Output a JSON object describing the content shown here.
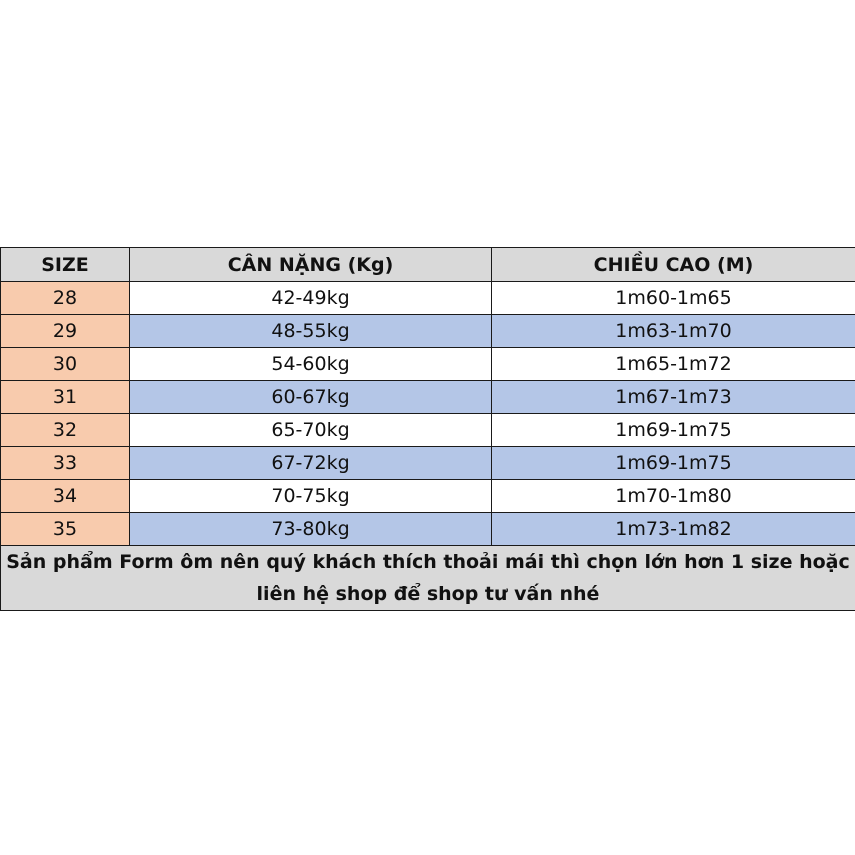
{
  "headers": [
    "SIZE",
    "CÂN NẶNG (Kg)",
    "CHIỀU CAO (M)"
  ],
  "rows": [
    [
      "28",
      "42-49kg",
      "1m60-1m65"
    ],
    [
      "29",
      "48-55kg",
      "1m63-1m70"
    ],
    [
      "30",
      "54-60kg",
      "1m65-1m72"
    ],
    [
      "31",
      "60-67kg",
      "1m67-1m73"
    ],
    [
      "32",
      "65-70kg",
      "1m69-1m75"
    ],
    [
      "33",
      "67-72kg",
      "1m69-1m75"
    ],
    [
      "34",
      "70-75kg",
      "1m70-1m80"
    ],
    [
      "35",
      "73-80kg",
      "1m73-1m82"
    ]
  ],
  "note": "Sản phẩm Form ôm nên quý khách thích thoải mái thì chọn lớn hơn 1 size hoặc liên hệ shop để shop tư vấn nhé",
  "colors": {
    "header": "#d9d9d9",
    "size_column": "#f8cbad",
    "alt_row": "#b4c6e7"
  }
}
